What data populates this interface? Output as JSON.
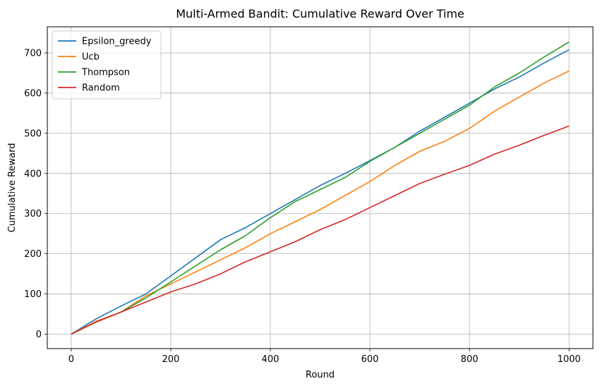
{
  "chart_data": {
    "type": "line",
    "title": "Multi-Armed Bandit: Cumulative Reward Over Time",
    "xlabel": "Round",
    "ylabel": "Cumulative Reward",
    "xlim": [
      -48,
      1048
    ],
    "ylim": [
      -36,
      765
    ],
    "xticks": [
      0,
      200,
      400,
      600,
      800,
      1000
    ],
    "yticks": [
      0,
      100,
      200,
      300,
      400,
      500,
      600,
      700
    ],
    "grid": true,
    "legend_position": "top-left",
    "series": [
      {
        "name": "Epsilon_greedy",
        "color": "#1f77b4",
        "x": [
          0,
          50,
          100,
          150,
          200,
          250,
          300,
          350,
          400,
          450,
          500,
          550,
          600,
          650,
          700,
          750,
          800,
          850,
          900,
          950,
          1000
        ],
        "y": [
          0,
          38,
          70,
          100,
          145,
          190,
          235,
          265,
          300,
          335,
          370,
          400,
          432,
          465,
          505,
          540,
          575,
          610,
          640,
          675,
          708
        ]
      },
      {
        "name": "Ucb",
        "color": "#ff7f0e",
        "x": [
          0,
          50,
          100,
          150,
          200,
          250,
          300,
          350,
          400,
          450,
          500,
          550,
          600,
          650,
          700,
          750,
          800,
          850,
          900,
          950,
          1000
        ],
        "y": [
          0,
          32,
          55,
          95,
          125,
          155,
          185,
          215,
          250,
          280,
          310,
          345,
          380,
          420,
          455,
          480,
          512,
          555,
          590,
          625,
          655
        ]
      },
      {
        "name": "Thompson",
        "color": "#2ca02c",
        "x": [
          0,
          50,
          100,
          150,
          200,
          250,
          300,
          350,
          400,
          450,
          500,
          550,
          600,
          650,
          700,
          750,
          800,
          850,
          900,
          950,
          1000
        ],
        "y": [
          0,
          30,
          55,
          90,
          130,
          170,
          210,
          245,
          290,
          330,
          360,
          390,
          430,
          465,
          500,
          535,
          570,
          615,
          650,
          690,
          727
        ]
      },
      {
        "name": "Random",
        "color": "#d62728",
        "x": [
          0,
          50,
          100,
          150,
          200,
          250,
          300,
          350,
          400,
          450,
          500,
          550,
          600,
          650,
          700,
          750,
          800,
          850,
          900,
          950,
          1000
        ],
        "y": [
          0,
          30,
          55,
          80,
          105,
          125,
          150,
          180,
          205,
          230,
          260,
          285,
          315,
          345,
          375,
          398,
          420,
          448,
          470,
          495,
          518
        ]
      }
    ]
  }
}
